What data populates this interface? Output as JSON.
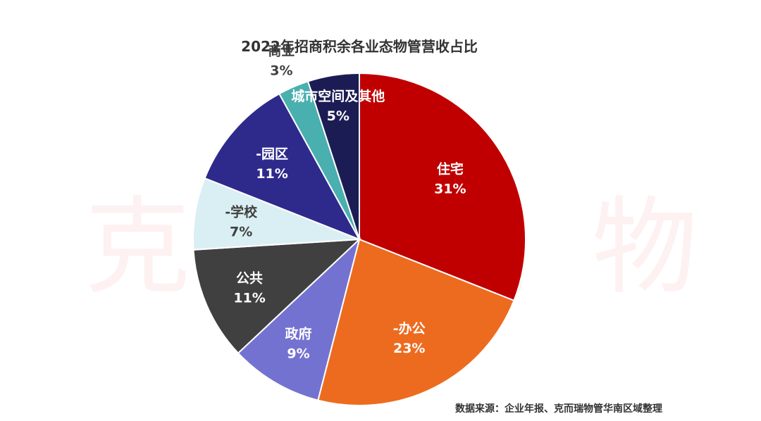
{
  "chart_data": {
    "type": "pie",
    "title": "2022年招商积余各业态物管营收占比",
    "slices": [
      {
        "label": "住宅",
        "value": 31,
        "value_label": "31%",
        "color": "#c00000"
      },
      {
        "label": "-办公",
        "value": 23,
        "value_label": "23%",
        "color": "#ed6b1f"
      },
      {
        "label": "政府",
        "value": 9,
        "value_label": "9%",
        "color": "#7472d0"
      },
      {
        "label": "公共",
        "value": 11,
        "value_label": "11%",
        "color": "#404040"
      },
      {
        "label": "-学校",
        "value": 7,
        "value_label": "7%",
        "color": "#daeff3"
      },
      {
        "label": "-园区",
        "value": 11,
        "value_label": "11%",
        "color": "#2e2a8c"
      },
      {
        "label": "商业",
        "value": 3,
        "value_label": "3%",
        "color": "#4aafaf"
      },
      {
        "label": "城市空间及其他",
        "value": 5,
        "value_label": "5%",
        "color": "#1c1c55"
      }
    ],
    "start_position": "top",
    "direction": "clockwise",
    "legend": "none"
  },
  "watermark": "克而瑞物管",
  "source_note": "数据来源：企业年报、克而瑞物管华南区域整理"
}
